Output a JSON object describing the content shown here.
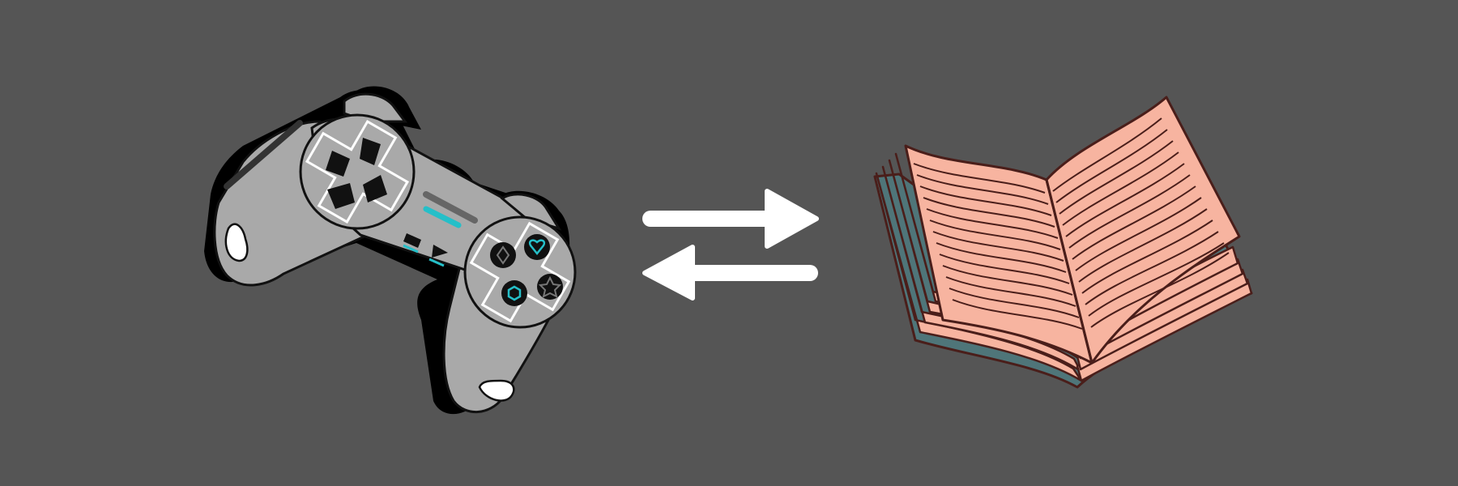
{
  "scene": {
    "background_color": "#555555",
    "items": [
      {
        "id": "controller",
        "icon": "gamepad-icon"
      },
      {
        "id": "exchange",
        "icon": "swap-arrows-icon"
      },
      {
        "id": "book",
        "icon": "open-book-icon"
      }
    ]
  },
  "colors": {
    "controller_body": "#A9A9A9",
    "controller_outline": "#111111",
    "controller_shadow": "#000000",
    "controller_accent": "#25BFC8",
    "arrows": "#FFFFFF",
    "book_pages": "#F7B4A0",
    "book_outline": "#4A1E1A",
    "book_edge": "#4F7579"
  }
}
